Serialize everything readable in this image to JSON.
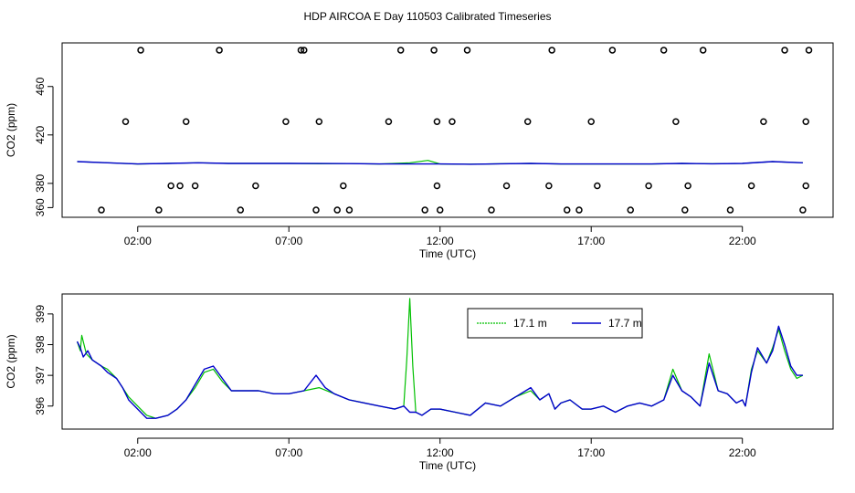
{
  "title": "HDP AIRCOA E  Day 110503  Calibrated Timeseries",
  "colors": {
    "series_17_1": "#00c000",
    "series_17_7": "#0000cc",
    "axis": "#000000",
    "calib": "#000000"
  },
  "chart_data": [
    {
      "type": "line",
      "panel": "top",
      "xlabel": "Time (UTC)",
      "ylabel": "CO2 (ppm)",
      "xlim": [
        -0.5,
        25
      ],
      "ylim": [
        352,
        496
      ],
      "xticks": [
        2,
        7,
        12,
        17,
        22
      ],
      "xtick_labels": [
        "02:00",
        "07:00",
        "12:00",
        "17:00",
        "22:00"
      ],
      "yticks": [
        380,
        420,
        460,
        360
      ],
      "ytick_labels": [
        "380",
        "420",
        "460",
        "360"
      ],
      "series": [
        {
          "name": "17.1 m",
          "x": [
            0,
            1,
            2,
            3,
            4,
            5,
            6,
            7,
            8,
            9,
            10,
            11,
            11.6,
            12,
            13,
            14,
            15,
            16,
            17,
            18,
            19,
            20,
            21,
            22,
            23,
            24
          ],
          "y": [
            398,
            397,
            396,
            396.5,
            397,
            396.5,
            396.5,
            396.5,
            396.2,
            396.3,
            396,
            397,
            399,
            396,
            395.8,
            396.2,
            396.5,
            396,
            396,
            396,
            396,
            396.5,
            396.2,
            396.5,
            398,
            397
          ]
        },
        {
          "name": "17.7 m",
          "x": [
            0,
            1,
            2,
            3,
            4,
            5,
            6,
            7,
            8,
            9,
            10,
            11,
            12,
            13,
            14,
            15,
            16,
            17,
            18,
            19,
            20,
            21,
            22,
            23,
            24
          ],
          "y": [
            398,
            397,
            396,
            396.5,
            397,
            396.5,
            396.5,
            396.5,
            396.4,
            396.3,
            396,
            396,
            396,
            395.8,
            396.2,
            396.5,
            396,
            396,
            396,
            396,
            396.5,
            396.2,
            396.5,
            398,
            397
          ]
        }
      ],
      "calibration_points": {
        "x": [
          0.8,
          2.1,
          2.7,
          3.1,
          3.4,
          1.6,
          3.6,
          3.9,
          4.7,
          5.4,
          5.9,
          6.9,
          7.4,
          7.9,
          8.0,
          7.5,
          8.6,
          8.8,
          9.0,
          10.3,
          10.7,
          11.5,
          11.9,
          11.8,
          11.9,
          12.0,
          12.4,
          12.9,
          13.7,
          14.2,
          14.9,
          15.7,
          15.6,
          16.2,
          16.6,
          17.2,
          17.0,
          17.7,
          18.3,
          18.9,
          19.8,
          19.4,
          20.1,
          20.2,
          20.7,
          21.6,
          22.3,
          22.7,
          23.4,
          24.0,
          24.1,
          24.1,
          24.2
        ],
        "y": [
          358,
          490,
          358,
          378,
          378,
          431,
          431,
          378,
          490,
          358,
          378,
          431,
          490,
          358,
          431,
          490,
          358,
          378,
          358,
          431,
          490,
          358,
          378,
          490,
          431,
          358,
          431,
          490,
          358,
          378,
          431,
          490,
          378,
          358,
          358,
          378,
          431,
          490,
          358,
          378,
          431,
          490,
          358,
          378,
          490,
          358,
          378,
          431,
          490,
          358,
          378,
          431,
          490
        ]
      }
    },
    {
      "type": "line",
      "panel": "bottom",
      "xlabel": "Time (UTC)",
      "ylabel": "CO2 (ppm)",
      "xlim": [
        -0.5,
        25
      ],
      "ylim": [
        395.25,
        399.65
      ],
      "xticks": [
        2,
        7,
        12,
        17,
        22
      ],
      "xtick_labels": [
        "02:00",
        "07:00",
        "12:00",
        "17:00",
        "22:00"
      ],
      "yticks": [
        396,
        397,
        398,
        399
      ],
      "ytick_labels": [
        "396",
        "397",
        "398",
        "399"
      ],
      "legend": {
        "placement": "top-right"
      },
      "series": [
        {
          "name": "17.1 m",
          "x": [
            0.0,
            0.1,
            0.15,
            0.3,
            0.5,
            0.8,
            1.0,
            1.3,
            1.5,
            1.7,
            2.0,
            2.3,
            2.6,
            3.0,
            3.3,
            3.6,
            3.9,
            4.2,
            4.5,
            4.8,
            5.1,
            5.5,
            6.0,
            6.5,
            7.0,
            7.5,
            8.0,
            8.5,
            9.0,
            9.5,
            10.0,
            10.5,
            10.8,
            10.9,
            11.0,
            11.1,
            11.2,
            11.4,
            11.7,
            12.0,
            12.5,
            13.0,
            13.5,
            14.0,
            14.5,
            15.0,
            15.3,
            15.6,
            15.8,
            16.0,
            16.3,
            16.7,
            17.0,
            17.4,
            17.8,
            18.2,
            18.6,
            19.0,
            19.4,
            19.7,
            20.0,
            20.3,
            20.6,
            20.9,
            21.2,
            21.5,
            21.8,
            22.0,
            22.1,
            22.3,
            22.5,
            22.8,
            23.0,
            23.2,
            23.4,
            23.6,
            23.8,
            24.0
          ],
          "y": [
            398.1,
            397.8,
            398.3,
            397.7,
            397.5,
            397.3,
            397.2,
            396.9,
            396.6,
            396.3,
            396.0,
            395.7,
            395.6,
            395.7,
            395.9,
            396.2,
            396.6,
            397.1,
            397.2,
            396.8,
            396.5,
            396.5,
            396.5,
            396.4,
            396.4,
            396.5,
            396.6,
            396.4,
            396.2,
            396.1,
            396.0,
            395.9,
            396.0,
            397.5,
            399.5,
            397.3,
            395.8,
            395.7,
            395.9,
            395.9,
            395.8,
            395.7,
            396.1,
            396.0,
            396.3,
            396.5,
            396.2,
            396.4,
            395.9,
            396.1,
            396.2,
            395.9,
            395.9,
            396.0,
            395.8,
            396.0,
            396.1,
            396.0,
            396.2,
            397.2,
            396.5,
            396.3,
            396.0,
            397.7,
            396.5,
            396.4,
            396.1,
            396.2,
            396.0,
            397.2,
            397.8,
            397.4,
            397.9,
            398.5,
            397.8,
            397.2,
            396.9,
            397.0
          ]
        },
        {
          "name": "17.7 m",
          "x": [
            0.0,
            0.1,
            0.2,
            0.35,
            0.5,
            0.8,
            1.0,
            1.3,
            1.5,
            1.7,
            2.0,
            2.3,
            2.6,
            3.0,
            3.3,
            3.6,
            3.9,
            4.2,
            4.5,
            4.8,
            5.1,
            5.5,
            6.0,
            6.5,
            7.0,
            7.5,
            7.9,
            8.2,
            8.5,
            9.0,
            9.5,
            10.0,
            10.5,
            10.8,
            10.9,
            11.0,
            11.1,
            11.2,
            11.4,
            11.7,
            12.0,
            12.5,
            13.0,
            13.5,
            14.0,
            14.5,
            15.0,
            15.3,
            15.6,
            15.8,
            16.0,
            16.3,
            16.7,
            17.0,
            17.4,
            17.8,
            18.2,
            18.6,
            19.0,
            19.4,
            19.7,
            20.0,
            20.3,
            20.6,
            20.9,
            21.2,
            21.5,
            21.8,
            22.0,
            22.1,
            22.3,
            22.5,
            22.8,
            23.0,
            23.2,
            23.4,
            23.6,
            23.8,
            24.0
          ],
          "y": [
            398.1,
            397.9,
            397.6,
            397.8,
            397.5,
            397.3,
            397.1,
            396.9,
            396.6,
            396.2,
            395.9,
            395.6,
            395.6,
            395.7,
            395.9,
            396.2,
            396.7,
            397.2,
            397.3,
            396.9,
            396.5,
            396.5,
            396.5,
            396.4,
            396.4,
            396.5,
            397.0,
            396.6,
            396.4,
            396.2,
            396.1,
            396.0,
            395.9,
            396.0,
            395.9,
            395.8,
            395.8,
            395.8,
            395.7,
            395.9,
            395.9,
            395.8,
            395.7,
            396.1,
            396.0,
            396.3,
            396.6,
            396.2,
            396.4,
            395.9,
            396.1,
            396.2,
            395.9,
            395.9,
            396.0,
            395.8,
            396.0,
            396.1,
            396.0,
            396.2,
            397.0,
            396.5,
            396.3,
            396.0,
            397.4,
            396.5,
            396.4,
            396.1,
            396.2,
            396.0,
            397.1,
            397.9,
            397.4,
            397.8,
            398.6,
            398.0,
            397.3,
            397.0,
            397.0
          ]
        }
      ]
    }
  ]
}
